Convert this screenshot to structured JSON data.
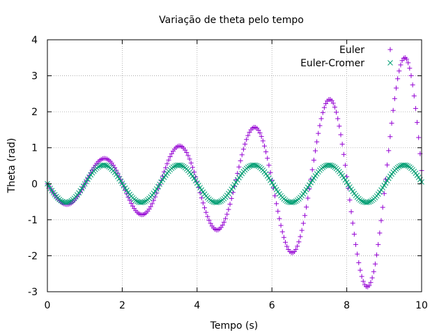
{
  "chart_data": {
    "type": "scatter",
    "title": "Variação de theta pelo tempo",
    "xlabel": "Tempo (s)",
    "ylabel": "Theta (rad)",
    "xlim": [
      0,
      10
    ],
    "ylim": [
      -3,
      4
    ],
    "x_ticks": [
      "0",
      "2",
      "4",
      "6",
      "8",
      "10"
    ],
    "y_ticks": [
      "-3",
      "-2",
      "-1",
      "0",
      "1",
      "2",
      "3",
      "4"
    ],
    "grid": true,
    "legend_position": "top-right",
    "series": [
      {
        "name": "Euler",
        "color": "#9400d3",
        "marker": "plus",
        "generator": {
          "amplitude_start": 0.52,
          "growth_rate": 0.2,
          "angular_freq": 3.132,
          "phase": 3.1416,
          "dt": 0.04,
          "t_end": 10.0
        }
      },
      {
        "name": "Euler-Cromer",
        "color": "#009e73",
        "marker": "cross",
        "generator": {
          "amplitude_start": 0.52,
          "growth_rate": 0.0,
          "angular_freq": 3.132,
          "phase": 3.1416,
          "dt": 0.04,
          "t_end": 10.0
        }
      }
    ]
  }
}
